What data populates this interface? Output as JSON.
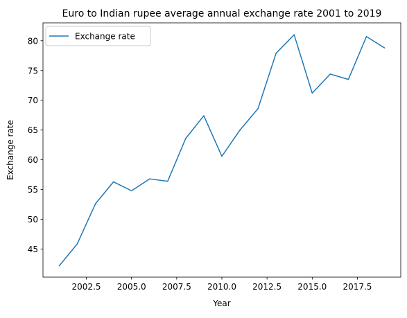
{
  "chart_data": {
    "type": "line",
    "title": "Euro to Indian rupee average annual exchange rate 2001 to 2019",
    "xlabel": "Year",
    "ylabel": "Exchange rate",
    "xlim": [
      2000.1,
      2019.9
    ],
    "ylim": [
      40.3,
      83.0
    ],
    "xticks": [
      2002.5,
      2005.0,
      2007.5,
      2010.0,
      2012.5,
      2015.0,
      2017.5
    ],
    "xtick_labels": [
      "2002.5",
      "2005.0",
      "2007.5",
      "2010.0",
      "2012.5",
      "2015.0",
      "2017.5"
    ],
    "yticks": [
      45,
      50,
      55,
      60,
      65,
      70,
      75,
      80
    ],
    "ytick_labels": [
      "45",
      "50",
      "55",
      "60",
      "65",
      "70",
      "75",
      "80"
    ],
    "grid": false,
    "legend_position": "top-left",
    "series": [
      {
        "name": "Exchange rate",
        "color": "#1f77b4",
        "x": [
          2001,
          2002,
          2003,
          2004,
          2005,
          2006,
          2007,
          2008,
          2009,
          2010,
          2011,
          2012,
          2013,
          2014,
          2015,
          2016,
          2017,
          2018,
          2019
        ],
        "y": [
          42.2,
          45.9,
          52.6,
          56.3,
          54.8,
          56.8,
          56.4,
          63.6,
          67.4,
          60.6,
          65.0,
          68.6,
          77.9,
          81.0,
          71.2,
          74.4,
          73.5,
          80.7,
          78.8
        ]
      }
    ]
  }
}
